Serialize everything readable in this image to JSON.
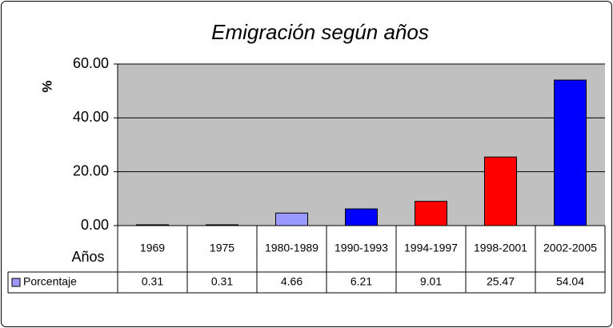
{
  "chart_data": {
    "type": "bar",
    "title": "Emigración según años",
    "y_label": "%",
    "x_label": "Años",
    "categories": [
      "1969",
      "1975",
      "1980-1989",
      "1990-1993",
      "1994-1997",
      "1998-2001",
      "2002-2005"
    ],
    "series": [
      {
        "name": "Porcentaje",
        "color": "#9999ff",
        "values": [
          0.31,
          0.31,
          4.66,
          6.21,
          9.01,
          25.47,
          54.04
        ],
        "colors": [
          "#9999ff",
          "#9999ff",
          "#9999ff",
          "#0000ff",
          "#ff0000",
          "#ff0000",
          "#0000ff"
        ]
      }
    ],
    "ylim": [
      0,
      60
    ],
    "yticks": [
      {
        "value": 0,
        "label": "0.00"
      },
      {
        "value": 20,
        "label": "20.00"
      },
      {
        "value": 40,
        "label": "40.00"
      },
      {
        "value": 60,
        "label": "60.00"
      }
    ],
    "grid": true,
    "plot_background": "#c0c0c0",
    "data_table": true
  }
}
